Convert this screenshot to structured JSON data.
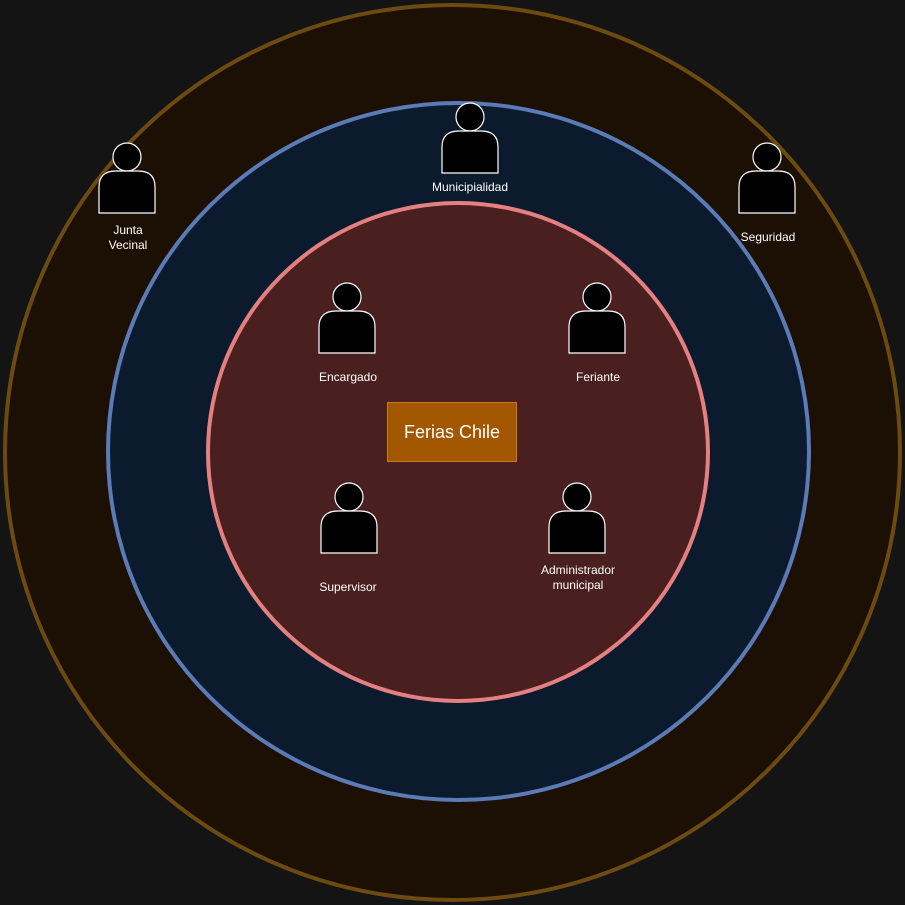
{
  "center": {
    "label": "Ferias Chile"
  },
  "colors": {
    "background": "#141414",
    "outer_ring_fill": "#1c1005",
    "outer_ring_stroke": "#6d4b10",
    "middle_ring_fill": "#0c1a2d",
    "middle_ring_stroke": "#5a7bb5",
    "inner_ring_fill": "#4a1f1f",
    "inner_ring_stroke": "#e58080",
    "center_fill": "#a35600",
    "center_stroke": "#c77f16",
    "actor_fill": "#000000",
    "actor_stroke": "#ffffff"
  },
  "actors": {
    "junta_vecinal": {
      "label": "Junta\nVecinal",
      "icon": "person-icon"
    },
    "municipialidad": {
      "label": "Municipialidad",
      "icon": "person-icon"
    },
    "seguridad": {
      "label": "Seguridad",
      "icon": "person-icon"
    },
    "encargado": {
      "label": "Encargado",
      "icon": "person-icon"
    },
    "feriante": {
      "label": "Feriante",
      "icon": "person-icon"
    },
    "supervisor": {
      "label": "Supervisor",
      "icon": "person-icon"
    },
    "administrador": {
      "label": "Administrador\nmunicipal",
      "icon": "person-icon"
    }
  }
}
